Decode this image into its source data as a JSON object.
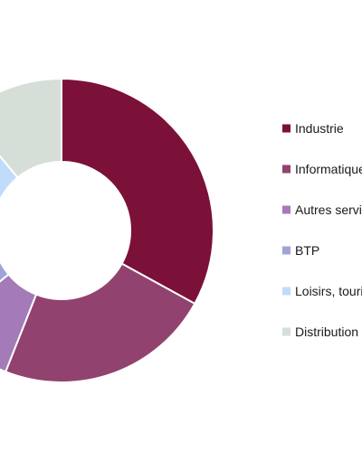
{
  "chart_data": {
    "type": "pie",
    "variant": "donut",
    "title": "",
    "categories": [
      "Industrie",
      "Informatique",
      "Autres services",
      "BTP",
      "Loisirs, tourisme",
      "Distribution"
    ],
    "values": [
      33,
      23,
      8,
      13,
      12,
      11
    ],
    "colors": [
      "#7b1038",
      "#92426f",
      "#a47ab8",
      "#a0a3d8",
      "#c0dcfb",
      "#d5dfd7"
    ],
    "legend_position": "right"
  }
}
